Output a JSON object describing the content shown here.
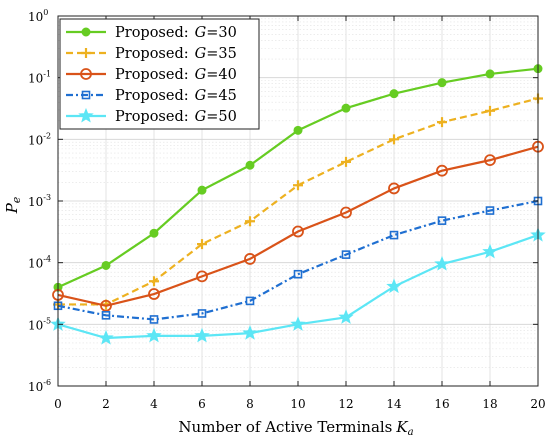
{
  "chart_data": {
    "type": "line",
    "xlabel": "Number of Active Terminals",
    "xlabel_sub": "a",
    "xlabel_var": "K",
    "ylabel": "P",
    "ylabel_sub": "e",
    "x": [
      0,
      2,
      4,
      6,
      8,
      10,
      12,
      14,
      16,
      18,
      20
    ],
    "xlim": [
      0,
      20
    ],
    "ylim": [
      1e-06,
      1
    ],
    "yscale": "log",
    "grid": true,
    "legend_position": "top-left",
    "x_ticks": [
      "0",
      "2",
      "4",
      "6",
      "8",
      "10",
      "12",
      "14",
      "16",
      "18",
      "20"
    ],
    "y_ticks": [
      {
        "base": "10",
        "exp": "-6"
      },
      {
        "base": "10",
        "exp": "-5"
      },
      {
        "base": "10",
        "exp": "-4"
      },
      {
        "base": "10",
        "exp": "-3"
      },
      {
        "base": "10",
        "exp": "-2"
      },
      {
        "base": "10",
        "exp": "-1"
      },
      {
        "base": "10",
        "exp": "0"
      }
    ],
    "series": [
      {
        "name": "Proposed:",
        "g_label": "G",
        "g_value": "=30",
        "color": "#66cc22",
        "dash": "solid",
        "marker": "dot",
        "values": [
          4e-05,
          9e-05,
          0.0003,
          0.0015,
          0.0038,
          0.014,
          0.032,
          0.055,
          0.083,
          0.115,
          0.14
        ]
      },
      {
        "name": "Proposed:",
        "g_label": "G",
        "g_value": "=35",
        "color": "#edb120",
        "dash": "dashed",
        "marker": "plus",
        "values": [
          2.1e-05,
          2.1e-05,
          5e-05,
          0.0002,
          0.00047,
          0.0018,
          0.0043,
          0.01,
          0.019,
          0.029,
          0.046
        ]
      },
      {
        "name": "Proposed:",
        "g_label": "G",
        "g_value": "=40",
        "color": "#d95319",
        "dash": "solid",
        "marker": "circle",
        "values": [
          3e-05,
          2e-05,
          3.1e-05,
          6e-05,
          0.000115,
          0.00032,
          0.00065,
          0.0016,
          0.0031,
          0.0046,
          0.0076
        ]
      },
      {
        "name": "Proposed:",
        "g_label": "G",
        "g_value": "=45",
        "color": "#1f6fd1",
        "dash": "dashdot",
        "marker": "square",
        "values": [
          2e-05,
          1.4e-05,
          1.2e-05,
          1.5e-05,
          2.4e-05,
          6.5e-05,
          0.000135,
          0.00028,
          0.00048,
          0.0007,
          0.001
        ]
      },
      {
        "name": "Proposed:",
        "g_label": "G",
        "g_value": "=50",
        "color": "#5ce6f5",
        "dash": "solid",
        "marker": "star",
        "values": [
          1e-05,
          6e-06,
          6.5e-06,
          6.5e-06,
          7.2e-06,
          1e-05,
          1.3e-05,
          4.1e-05,
          9.5e-05,
          0.00015,
          0.00028
        ]
      }
    ]
  }
}
